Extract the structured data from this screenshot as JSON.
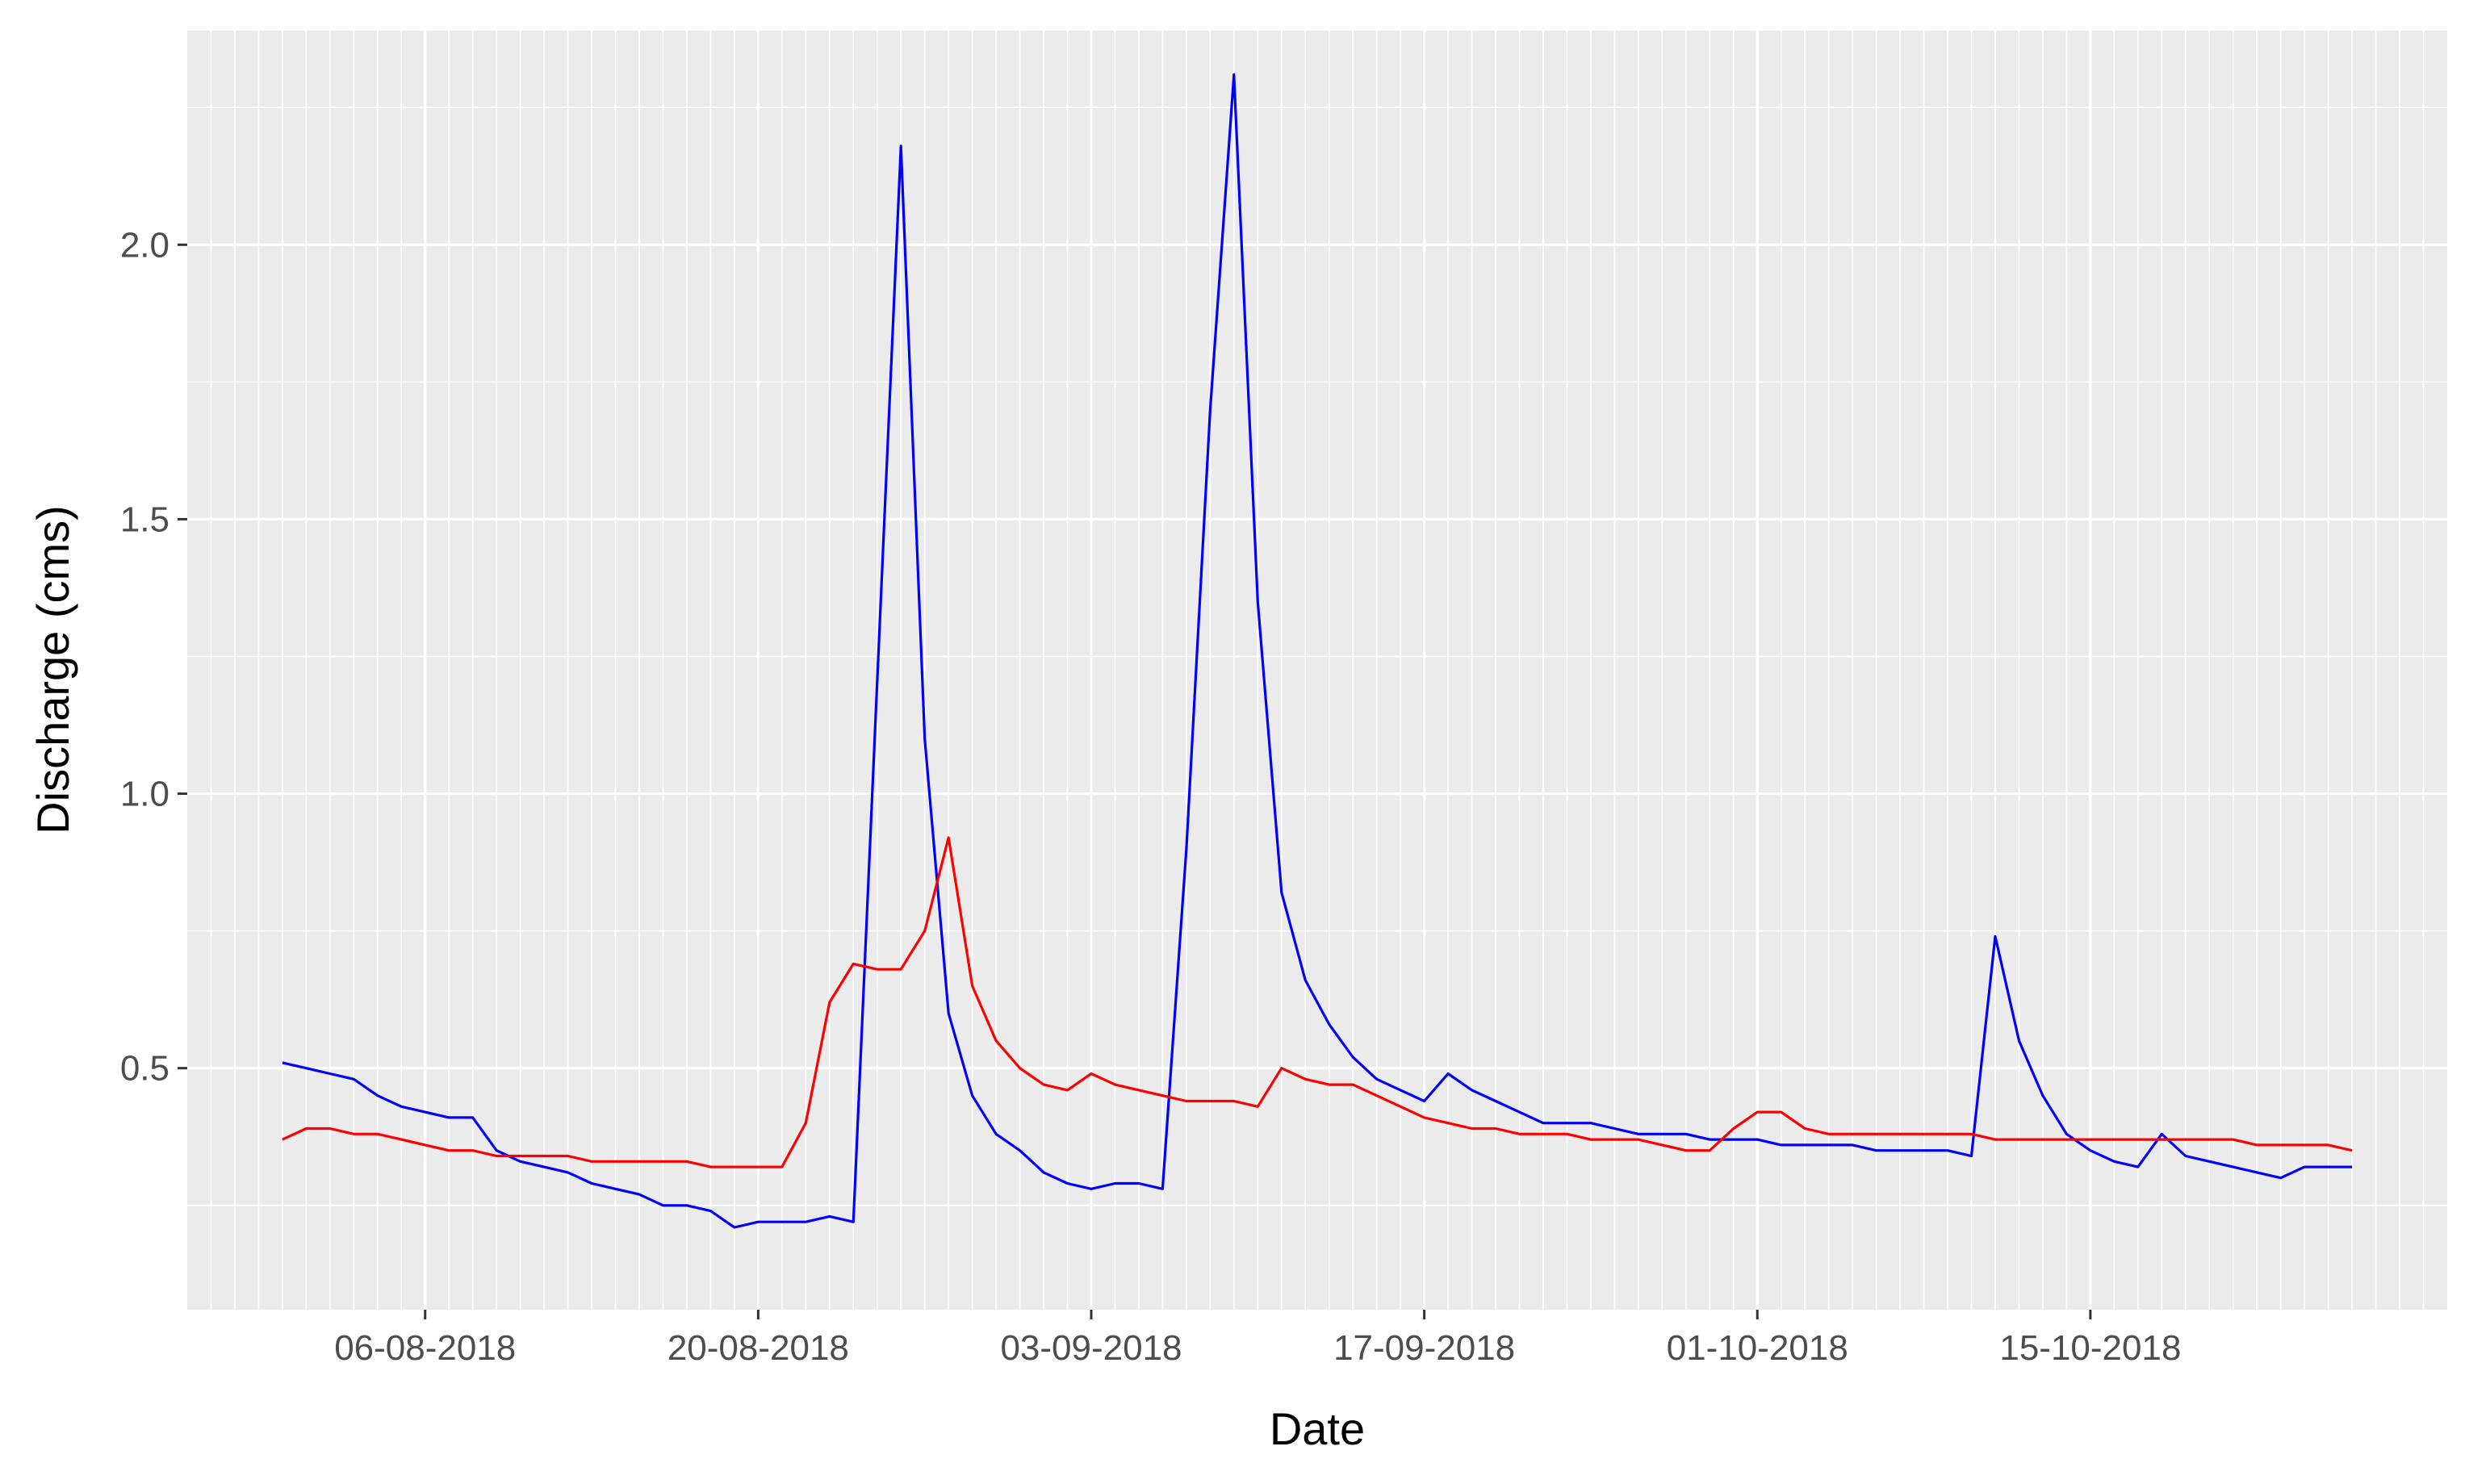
{
  "chart_data": {
    "type": "line",
    "xlabel": "Date",
    "ylabel": "Discharge (cms)",
    "xlim": [
      "2018-07-27",
      "2018-10-30"
    ],
    "ylim": [
      0.06,
      2.39
    ],
    "x_ticks": [
      "2018-08-06",
      "2018-08-20",
      "2018-09-03",
      "2018-09-17",
      "2018-10-01",
      "2018-10-15"
    ],
    "x_tick_labels": [
      "06-08-2018",
      "20-08-2018",
      "03-09-2018",
      "17-09-2018",
      "01-10-2018",
      "15-10-2018"
    ],
    "y_ticks": [
      0.5,
      1.0,
      1.5,
      2.0
    ],
    "y_tick_labels": [
      "0.5",
      "1.0",
      "1.5",
      "2.0"
    ],
    "grid": true,
    "background": "#ebebeb",
    "grid_color": "#ffffff",
    "series": [
      {
        "color": "#0000ff",
        "x": [
          "2018-07-31",
          "2018-08-01",
          "2018-08-02",
          "2018-08-03",
          "2018-08-04",
          "2018-08-05",
          "2018-08-06",
          "2018-08-07",
          "2018-08-08",
          "2018-08-09",
          "2018-08-10",
          "2018-08-11",
          "2018-08-12",
          "2018-08-13",
          "2018-08-14",
          "2018-08-15",
          "2018-08-16",
          "2018-08-17",
          "2018-08-18",
          "2018-08-19",
          "2018-08-20",
          "2018-08-21",
          "2018-08-22",
          "2018-08-23",
          "2018-08-24",
          "2018-08-25",
          "2018-08-26",
          "2018-08-27",
          "2018-08-28",
          "2018-08-29",
          "2018-08-30",
          "2018-08-31",
          "2018-09-01",
          "2018-09-02",
          "2018-09-03",
          "2018-09-04",
          "2018-09-05",
          "2018-09-06",
          "2018-09-07",
          "2018-09-08",
          "2018-09-09",
          "2018-09-10",
          "2018-09-11",
          "2018-09-12",
          "2018-09-13",
          "2018-09-14",
          "2018-09-15",
          "2018-09-16",
          "2018-09-17",
          "2018-09-18",
          "2018-09-19",
          "2018-09-20",
          "2018-09-21",
          "2018-09-22",
          "2018-09-23",
          "2018-09-24",
          "2018-09-25",
          "2018-09-26",
          "2018-09-27",
          "2018-09-28",
          "2018-09-29",
          "2018-09-30",
          "2018-10-01",
          "2018-10-02",
          "2018-10-03",
          "2018-10-04",
          "2018-10-05",
          "2018-10-06",
          "2018-10-07",
          "2018-10-08",
          "2018-10-09",
          "2018-10-10",
          "2018-10-11",
          "2018-10-12",
          "2018-10-13",
          "2018-10-14",
          "2018-10-15",
          "2018-10-16",
          "2018-10-17",
          "2018-10-18",
          "2018-10-19",
          "2018-10-20",
          "2018-10-21",
          "2018-10-22",
          "2018-10-23",
          "2018-10-24",
          "2018-10-25",
          "2018-10-26"
        ],
        "values": [
          0.51,
          0.5,
          0.49,
          0.48,
          0.45,
          0.43,
          0.42,
          0.41,
          0.41,
          0.35,
          0.33,
          0.32,
          0.31,
          0.29,
          0.28,
          0.27,
          0.25,
          0.25,
          0.24,
          0.21,
          0.22,
          0.22,
          0.22,
          0.23,
          0.22,
          1.2,
          2.18,
          1.1,
          0.6,
          0.45,
          0.38,
          0.35,
          0.31,
          0.29,
          0.28,
          0.29,
          0.29,
          0.28,
          0.9,
          1.7,
          2.31,
          1.35,
          0.82,
          0.66,
          0.58,
          0.52,
          0.48,
          0.46,
          0.44,
          0.49,
          0.46,
          0.44,
          0.42,
          0.4,
          0.4,
          0.4,
          0.39,
          0.38,
          0.38,
          0.38,
          0.37,
          0.37,
          0.37,
          0.36,
          0.36,
          0.36,
          0.36,
          0.35,
          0.35,
          0.35,
          0.35,
          0.34,
          0.74,
          0.55,
          0.45,
          0.38,
          0.35,
          0.33,
          0.32,
          0.38,
          0.34,
          0.33,
          0.32,
          0.31,
          0.3,
          0.32,
          0.32,
          0.32
        ]
      },
      {
        "color": "#ff0000",
        "x": [
          "2018-07-31",
          "2018-08-01",
          "2018-08-02",
          "2018-08-03",
          "2018-08-04",
          "2018-08-05",
          "2018-08-06",
          "2018-08-07",
          "2018-08-08",
          "2018-08-09",
          "2018-08-10",
          "2018-08-11",
          "2018-08-12",
          "2018-08-13",
          "2018-08-14",
          "2018-08-15",
          "2018-08-16",
          "2018-08-17",
          "2018-08-18",
          "2018-08-19",
          "2018-08-20",
          "2018-08-21",
          "2018-08-22",
          "2018-08-23",
          "2018-08-24",
          "2018-08-25",
          "2018-08-26",
          "2018-08-27",
          "2018-08-28",
          "2018-08-29",
          "2018-08-30",
          "2018-08-31",
          "2018-09-01",
          "2018-09-02",
          "2018-09-03",
          "2018-09-04",
          "2018-09-05",
          "2018-09-06",
          "2018-09-07",
          "2018-09-08",
          "2018-09-09",
          "2018-09-10",
          "2018-09-11",
          "2018-09-12",
          "2018-09-13",
          "2018-09-14",
          "2018-09-15",
          "2018-09-16",
          "2018-09-17",
          "2018-09-18",
          "2018-09-19",
          "2018-09-20",
          "2018-09-21",
          "2018-09-22",
          "2018-09-23",
          "2018-09-24",
          "2018-09-25",
          "2018-09-26",
          "2018-09-27",
          "2018-09-28",
          "2018-09-29",
          "2018-09-30",
          "2018-10-01",
          "2018-10-02",
          "2018-10-03",
          "2018-10-04",
          "2018-10-05",
          "2018-10-06",
          "2018-10-07",
          "2018-10-08",
          "2018-10-09",
          "2018-10-10",
          "2018-10-11",
          "2018-10-12",
          "2018-10-13",
          "2018-10-14",
          "2018-10-15",
          "2018-10-16",
          "2018-10-17",
          "2018-10-18",
          "2018-10-19",
          "2018-10-20",
          "2018-10-21",
          "2018-10-22",
          "2018-10-23",
          "2018-10-24",
          "2018-10-25",
          "2018-10-26"
        ],
        "values": [
          0.37,
          0.39,
          0.39,
          0.38,
          0.38,
          0.37,
          0.36,
          0.35,
          0.35,
          0.34,
          0.34,
          0.34,
          0.34,
          0.33,
          0.33,
          0.33,
          0.33,
          0.33,
          0.32,
          0.32,
          0.32,
          0.32,
          0.4,
          0.62,
          0.69,
          0.68,
          0.68,
          0.75,
          0.92,
          0.65,
          0.55,
          0.5,
          0.47,
          0.46,
          0.49,
          0.47,
          0.46,
          0.45,
          0.44,
          0.44,
          0.44,
          0.43,
          0.5,
          0.48,
          0.47,
          0.47,
          0.45,
          0.43,
          0.41,
          0.4,
          0.39,
          0.39,
          0.38,
          0.38,
          0.38,
          0.37,
          0.37,
          0.37,
          0.36,
          0.35,
          0.35,
          0.39,
          0.42,
          0.42,
          0.39,
          0.38,
          0.38,
          0.38,
          0.38,
          0.38,
          0.38,
          0.38,
          0.37,
          0.37,
          0.37,
          0.37,
          0.37,
          0.37,
          0.37,
          0.37,
          0.37,
          0.37,
          0.37,
          0.36,
          0.36,
          0.36,
          0.36,
          0.35
        ]
      }
    ]
  }
}
